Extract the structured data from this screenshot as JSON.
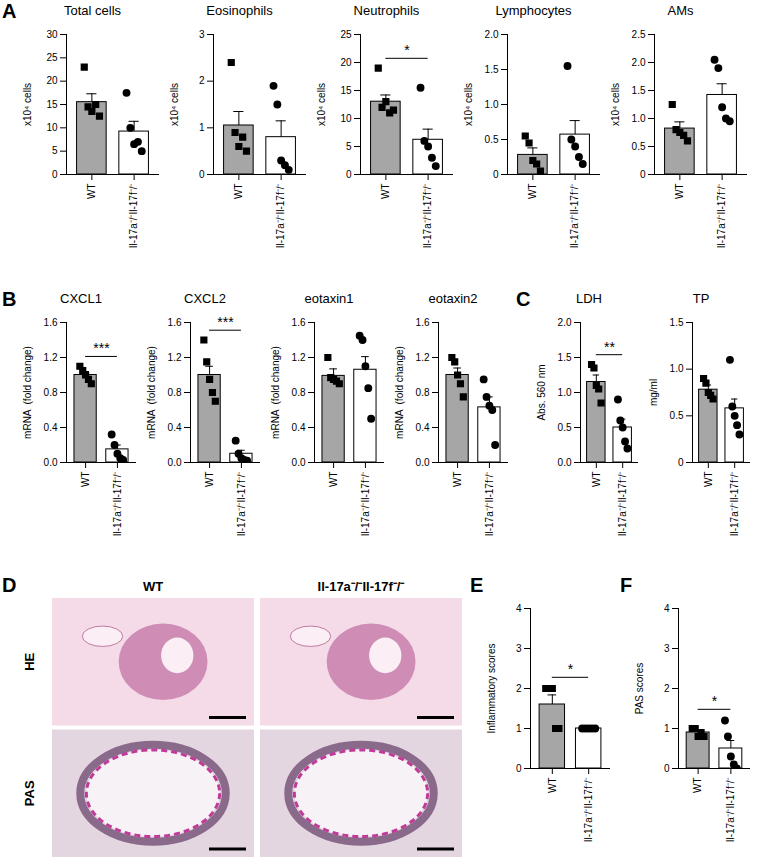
{
  "chart_data": [
    {
      "type": "bar",
      "panel": "A",
      "title": "Total cells",
      "ylabel": "x10⁴ cells",
      "categories": [
        "WT",
        "Il-17a⁻/⁻Il-17f⁻/⁻"
      ],
      "values": [
        15.5,
        9.2
      ],
      "errors": [
        1.8,
        2.2
      ],
      "points": [
        {
          "marker": "square",
          "values": [
            23,
            14.5,
            13.5,
            15,
            12.5
          ]
        },
        {
          "marker": "circle",
          "values": [
            17.5,
            10,
            6.5,
            7,
            5
          ]
        }
      ],
      "colors": [
        "#a6a6a6",
        "#ffffff"
      ],
      "ylim": [
        0,
        30
      ],
      "yticks": [
        0,
        5,
        10,
        15,
        20,
        25,
        30
      ]
    },
    {
      "type": "bar",
      "title": "Eosinophils",
      "ylabel": "x10⁴ cells",
      "categories": [
        "WT",
        "Il-17a⁻/⁻Il-17f⁻/⁻"
      ],
      "values": [
        1.05,
        0.8
      ],
      "errors": [
        0.3,
        0.35
      ],
      "points": [
        {
          "marker": "square",
          "values": [
            2.4,
            0.9,
            0.6,
            0.8,
            0.5
          ]
        },
        {
          "marker": "circle",
          "values": [
            1.9,
            1.5,
            0.3,
            0.2,
            0.1
          ]
        }
      ],
      "colors": [
        "#a6a6a6",
        "#ffffff"
      ],
      "ylim": [
        0,
        3
      ],
      "yticks": [
        0,
        1,
        2,
        3
      ]
    },
    {
      "type": "bar",
      "title": "Neutrophils",
      "ylabel": "x10⁴ cells",
      "annotation": "*",
      "categories": [
        "WT",
        "Il-17a⁻/⁻Il-17f⁻/⁻"
      ],
      "values": [
        13,
        6.2
      ],
      "errors": [
        1.2,
        1.9
      ],
      "points": [
        {
          "marker": "square",
          "values": [
            19,
            12,
            13,
            11,
            11.5
          ]
        },
        {
          "marker": "circle",
          "values": [
            15.5,
            6,
            5,
            3,
            1.5
          ]
        }
      ],
      "colors": [
        "#a6a6a6",
        "#ffffff"
      ],
      "ylim": [
        0,
        25
      ],
      "yticks": [
        0,
        5,
        10,
        15,
        20,
        25
      ]
    },
    {
      "type": "bar",
      "title": "Lymphocytes",
      "ylabel": "x10⁴ cells",
      "categories": [
        "WT",
        "Il-17a⁻/⁻Il-17f⁻/⁻"
      ],
      "values": [
        0.28,
        0.57
      ],
      "errors": [
        0.1,
        0.2
      ],
      "points": [
        {
          "marker": "square",
          "values": [
            0.55,
            0.45,
            0.2,
            0.15,
            0.05
          ]
        },
        {
          "marker": "circle",
          "values": [
            1.55,
            0.5,
            0.4,
            0.25,
            0.15
          ]
        }
      ],
      "colors": [
        "#a6a6a6",
        "#ffffff"
      ],
      "ylim": [
        0,
        2
      ],
      "yticks": [
        0,
        0.5,
        {
          "value": 1,
          "label": "1.0"
        },
        1.5,
        {
          "value": 2,
          "label": "2.0"
        }
      ]
    },
    {
      "type": "bar",
      "title": "AMs",
      "ylabel": "x10⁴ cells",
      "categories": [
        "WT",
        "Il-17a⁻/⁻Il-17f⁻/⁻"
      ],
      "values": [
        0.82,
        1.42
      ],
      "errors": [
        0.12,
        0.2
      ],
      "points": [
        {
          "marker": "square",
          "values": [
            1.25,
            0.8,
            0.75,
            0.7,
            0.6
          ]
        },
        {
          "marker": "circle",
          "values": [
            2.05,
            1.9,
            1.2,
            1.0,
            0.95
          ]
        }
      ],
      "colors": [
        "#a6a6a6",
        "#ffffff"
      ],
      "ylim": [
        0,
        2.5
      ],
      "yticks": [
        0,
        0.5,
        {
          "value": 1,
          "label": "1.0"
        },
        1.5,
        {
          "value": 2,
          "label": "2.0"
        },
        2.5
      ]
    },
    {
      "type": "bar",
      "panel": "B",
      "title": "CXCL1",
      "ylabel": "mRNA  (fold change)",
      "annotation": "***",
      "categories": [
        "WT",
        "Il-17a⁻/⁻Il-17f⁻/⁻"
      ],
      "values": [
        1.0,
        0.15
      ],
      "errors": [
        0.04,
        0.05
      ],
      "points": [
        {
          "marker": "square",
          "values": [
            1.1,
            1.05,
            1.0,
            0.95,
            0.9
          ]
        },
        {
          "marker": "circle",
          "values": [
            0.32,
            0.2,
            0.1,
            0.05,
            0.03
          ]
        }
      ],
      "colors": [
        "#a6a6a6",
        "#ffffff"
      ],
      "ylim": [
        0,
        1.6
      ],
      "yticks": [
        {
          "value": 0,
          "label": "0.0"
        },
        0.4,
        0.8,
        1.2,
        1.6
      ]
    },
    {
      "type": "bar",
      "title": "CXCL2",
      "ylabel": "mRNA  (fold change)",
      "annotation": "***",
      "categories": [
        "WT",
        "Il-17a⁻/⁻Il-17f⁻/⁻"
      ],
      "values": [
        1.0,
        0.1
      ],
      "errors": [
        0.1,
        0.04
      ],
      "points": [
        {
          "marker": "square",
          "values": [
            1.4,
            1.15,
            0.95,
            0.8,
            0.7
          ]
        },
        {
          "marker": "circle",
          "values": [
            0.25,
            0.1,
            0.05,
            0.03,
            0.02
          ]
        }
      ],
      "colors": [
        "#a6a6a6",
        "#ffffff"
      ],
      "ylim": [
        0,
        1.6
      ],
      "yticks": [
        {
          "value": 0,
          "label": "0.0"
        },
        0.4,
        0.8,
        1.2,
        1.6
      ]
    },
    {
      "type": "bar",
      "title": "eotaxin1",
      "ylabel": "mRNA  (fold change)",
      "categories": [
        "WT",
        "Il-17a⁻/⁻Il-17f⁻/⁻"
      ],
      "values": [
        0.99,
        1.06
      ],
      "errors": [
        0.08,
        0.15
      ],
      "points": [
        {
          "marker": "square",
          "values": [
            1.2,
            0.97,
            0.95,
            0.93,
            0.9
          ]
        },
        {
          "marker": "circle",
          "values": [
            1.45,
            1.4,
            1.1,
            0.85,
            0.5
          ]
        }
      ],
      "colors": [
        "#a6a6a6",
        "#ffffff"
      ],
      "ylim": [
        0,
        1.6
      ],
      "yticks": [
        {
          "value": 0,
          "label": "0.0"
        },
        0.4,
        0.8,
        1.2,
        1.6
      ]
    },
    {
      "type": "bar",
      "title": "eotaxin2",
      "ylabel": "mRNA  (fold change)",
      "categories": [
        "WT",
        "Il-17a⁻/⁻Il-17f⁻/⁻"
      ],
      "values": [
        1.0,
        0.63
      ],
      "errors": [
        0.08,
        0.12
      ],
      "points": [
        {
          "marker": "square",
          "values": [
            1.2,
            1.15,
            1.0,
            0.9,
            0.75
          ]
        },
        {
          "marker": "circle",
          "values": [
            0.95,
            0.75,
            0.65,
            0.6,
            0.2
          ]
        }
      ],
      "colors": [
        "#a6a6a6",
        "#ffffff"
      ],
      "ylim": [
        0,
        1.6
      ],
      "yticks": [
        {
          "value": 0,
          "label": "0.0"
        },
        0.4,
        0.8,
        1.2,
        1.6
      ]
    },
    {
      "type": "bar",
      "panel": "C",
      "title": "LDH",
      "ylabel": "Abs. 560 nm",
      "annotation": "**",
      "categories": [
        "WT",
        "Il-17a⁻/⁻Il-17f⁻/⁻"
      ],
      "values": [
        1.15,
        0.5
      ],
      "errors": [
        0.1,
        0.12
      ],
      "points": [
        {
          "marker": "square",
          "values": [
            1.4,
            1.35,
            1.1,
            1.05,
            0.85
          ]
        },
        {
          "marker": "circle",
          "values": [
            0.9,
            0.6,
            0.5,
            0.3,
            0.2
          ]
        }
      ],
      "colors": [
        "#a6a6a6",
        "#ffffff"
      ],
      "ylim": [
        0,
        2
      ],
      "yticks": [
        {
          "value": 0,
          "label": "0.0"
        },
        0.5,
        {
          "value": 1,
          "label": "1.0"
        },
        1.5,
        {
          "value": 2,
          "label": "2.0"
        }
      ]
    },
    {
      "type": "bar",
      "title": "TP",
      "ylabel": "mg/ml",
      "categories": [
        "WT",
        "Il-17a⁻/⁻Il-17f⁻/⁻"
      ],
      "values": [
        0.78,
        0.58
      ],
      "errors": [
        0.05,
        0.1
      ],
      "points": [
        {
          "marker": "square",
          "values": [
            0.9,
            0.85,
            0.75,
            0.72,
            0.68
          ]
        },
        {
          "marker": "circle",
          "values": [
            1.1,
            0.6,
            0.5,
            0.4,
            0.3
          ]
        }
      ],
      "colors": [
        "#a6a6a6",
        "#ffffff"
      ],
      "ylim": [
        0,
        1.5
      ],
      "yticks": [
        0,
        0.5,
        {
          "value": 1,
          "label": "1.0"
        },
        1.5
      ]
    },
    {
      "type": "bar",
      "panel": "E",
      "ylabel": "Inflammatory scores",
      "annotation": "*",
      "categories": [
        "WT",
        "Il-17a⁻/⁻Il-17f⁻/⁻"
      ],
      "values": [
        1.6,
        1.0
      ],
      "errors": [
        0.24,
        0
      ],
      "points": [
        {
          "marker": "square",
          "values": [
            2,
            2,
            2,
            1,
            1
          ]
        },
        {
          "marker": "circle",
          "values": [
            1,
            1,
            1,
            1,
            1
          ]
        }
      ],
      "colors": [
        "#a6a6a6",
        "#ffffff"
      ],
      "ylim": [
        0,
        4
      ],
      "yticks": [
        0,
        1,
        2,
        3,
        4
      ]
    },
    {
      "type": "bar",
      "panel": "F",
      "ylabel": "PAS scores",
      "annotation": "*",
      "categories": [
        "WT",
        "Il-17a⁻/⁻Il-17f⁻/⁻"
      ],
      "values": [
        0.9,
        0.5
      ],
      "errors": [
        0.05,
        0.2
      ],
      "points": [
        {
          "marker": "square",
          "values": [
            1,
            1,
            0.8,
            0.9,
            0.8
          ]
        },
        {
          "marker": "circle",
          "values": [
            1.2,
            0.8,
            0.3,
            0.1,
            0
          ]
        }
      ],
      "colors": [
        "#a6a6a6",
        "#ffffff"
      ],
      "ylim": [
        0,
        4
      ],
      "yticks": [
        0,
        1,
        2,
        3,
        4
      ]
    }
  ],
  "histology": {
    "panel": "D",
    "columns": [
      "WT",
      "Il-17a⁻/⁻Il-17f⁻/⁻"
    ],
    "rows": [
      "HE",
      "PAS"
    ]
  }
}
